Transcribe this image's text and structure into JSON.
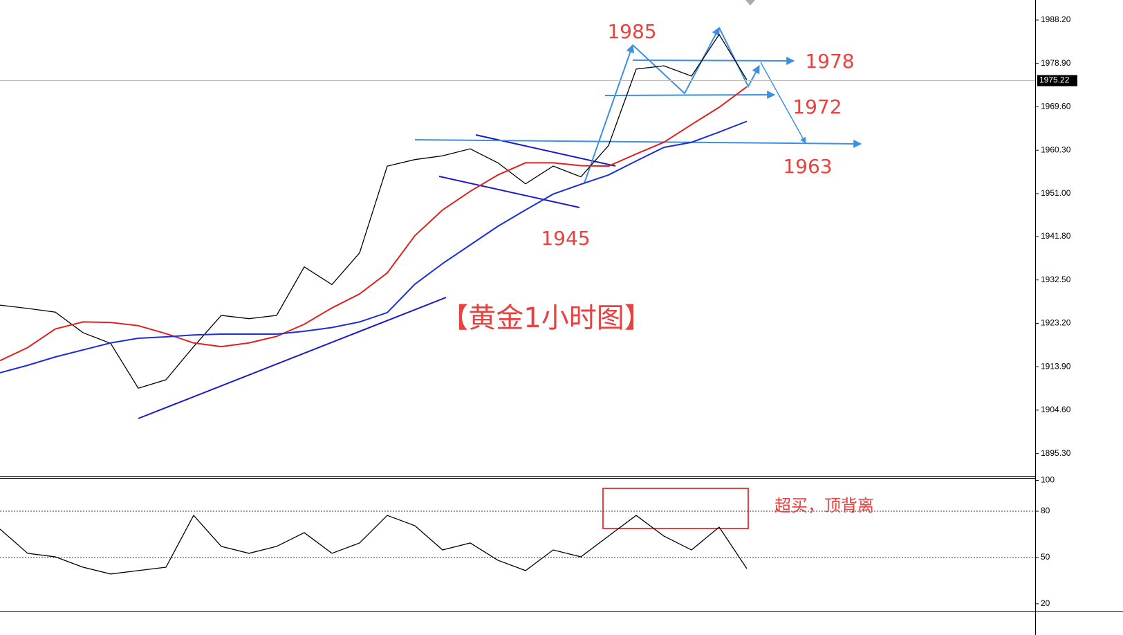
{
  "chart_data": [
    {
      "type": "line",
      "ylim": [
        1890.5,
        1992.5
      ],
      "yticks": [
        {
          "value": 1988.2,
          "label": "1988.20"
        },
        {
          "value": 1978.9,
          "label": "1978.90"
        },
        {
          "value": 1969.6,
          "label": "1969.60"
        },
        {
          "value": 1960.3,
          "label": "1960.30"
        },
        {
          "value": 1951,
          "label": "1951.00"
        },
        {
          "value": 1941.8,
          "label": "1941.80"
        },
        {
          "value": 1932.5,
          "label": "1932.50"
        },
        {
          "value": 1923.2,
          "label": "1923.20"
        },
        {
          "value": 1913.9,
          "label": "1913.90"
        },
        {
          "value": 1904.6,
          "label": "1904.60"
        },
        {
          "value": 1895.3,
          "label": "1895.30"
        }
      ],
      "current_price": 1975.22,
      "series": [
        {
          "color": "#000000",
          "values": [
            1927.1,
            1926.4,
            1925.6,
            1921.2,
            1918.9,
            1909.3,
            1911.1,
            1918.2,
            1924.9,
            1924.2,
            1924.9,
            1935.3,
            1931.5,
            1938.3,
            1956.9,
            1958.3,
            1959.1,
            1960.6,
            1957.6,
            1953.1,
            1956.9,
            1954.6,
            1961.3,
            1977.7,
            1978.4,
            1976.2,
            1985.1,
            1975.4
          ]
        },
        {
          "color": "#e02020",
          "values": [
            1915.2,
            1918,
            1922,
            1923.5,
            1923.4,
            1922.7,
            1921,
            1919,
            1918.2,
            1919,
            1920.4,
            1923,
            1926.5,
            1929.5,
            1934,
            1942,
            1947.5,
            1951.5,
            1955,
            1957.6,
            1957.6,
            1957,
            1956.9,
            1959.5,
            1962,
            1965.8,
            1969.5,
            1973.9
          ]
        },
        {
          "color": "#1a2ed8",
          "values": [
            1912.6,
            1914.2,
            1916,
            1917.5,
            1919,
            1920,
            1920.3,
            1920.7,
            1920.9,
            1920.9,
            1920.9,
            1921.5,
            1922.3,
            1923.5,
            1925.5,
            1931.6,
            1936,
            1940,
            1944,
            1947.5,
            1950.9,
            1953,
            1955,
            1958,
            1960.9,
            1962,
            1964.2,
            1966.5
          ]
        }
      ],
      "annotations": [
        "1985",
        "1978",
        "1972",
        "1963",
        "1945",
        "【黄金1小时图】"
      ]
    },
    {
      "type": "line",
      "ylim": [
        15,
        102
      ],
      "yticks": [
        100,
        80,
        50,
        20
      ],
      "levels": [
        80,
        50
      ],
      "series": [
        {
          "color": "#000000",
          "values": [
            68.4,
            52.7,
            50.4,
            43.7,
            39.3,
            41.5,
            43.7,
            77.3,
            57.2,
            52.7,
            57.2,
            66.1,
            52.7,
            59.4,
            77.3,
            70.6,
            54.9,
            59.4,
            48.2,
            41.5,
            54.9,
            50.4,
            63.9,
            77.3,
            63.9,
            54.9,
            69.7,
            42.8
          ]
        }
      ],
      "annotations": [
        "超买，顶背离"
      ]
    }
  ]
}
